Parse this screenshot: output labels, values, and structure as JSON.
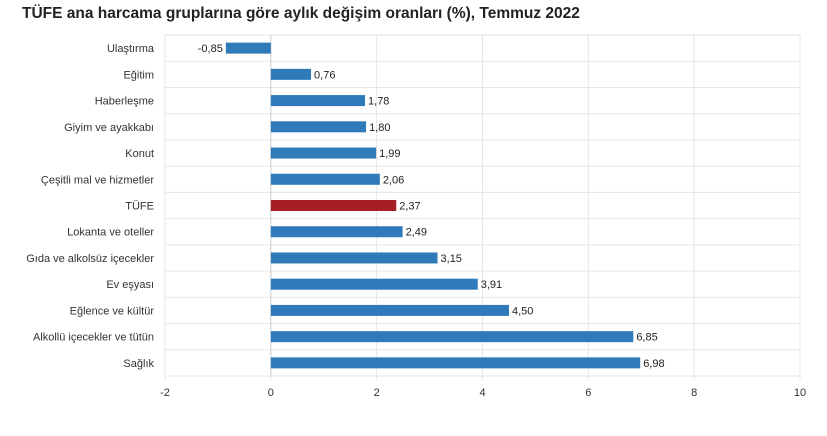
{
  "chart_data": {
    "type": "bar",
    "orientation": "horizontal",
    "title": "TÜFE ana harcama gruplarına göre aylık değişim oranları (%), Temmuz 2022",
    "categories": [
      "Ulaştırma",
      "Eğitim",
      "Haberleşme",
      "Giyim ve ayakkabı",
      "Konut",
      "Çeşitli mal ve hizmetler",
      "TÜFE",
      "Lokanta ve oteller",
      "Gıda ve alkolsüz içecekler",
      "Ev eşyası",
      "Eğlence ve kültür",
      "Alkollü içecekler ve tütün",
      "Sağlık"
    ],
    "values": [
      -0.85,
      0.76,
      1.78,
      1.8,
      1.99,
      2.06,
      2.37,
      2.49,
      3.15,
      3.91,
      4.5,
      6.85,
      6.98
    ],
    "value_labels": [
      "-0,85",
      "0,76",
      "1,78",
      "1,80",
      "1,99",
      "2,06",
      "2,37",
      "2,49",
      "3,15",
      "3,91",
      "4,50",
      "6,85",
      "6,98"
    ],
    "xlim": [
      -2,
      10
    ],
    "xticks": [
      -2,
      0,
      2,
      4,
      6,
      8,
      10
    ],
    "xtick_labels": [
      "-2",
      "0",
      "2",
      "4",
      "6",
      "8",
      "10"
    ],
    "xlabel": "",
    "ylabel": "",
    "grid": true,
    "colors": {
      "default": "#2f7ab8",
      "highlight": "#a51f23"
    },
    "highlight_category": "TÜFE"
  }
}
